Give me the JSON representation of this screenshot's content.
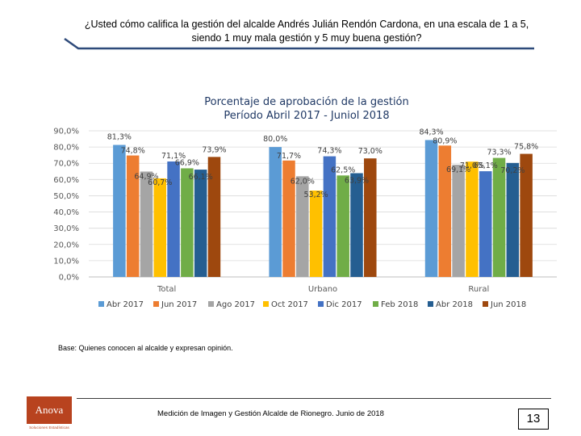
{
  "header": {
    "question": "¿Usted cómo califica la gestión del alcalde Andrés Julián Rendón Cardona, en una escala de 1 a 5, siendo 1 muy mala gestión y 5 muy buena gestión?"
  },
  "colors": {
    "accent_line": "#2e4a7a",
    "logo": "#b8431f"
  },
  "chart_data": {
    "type": "bar",
    "title": "Porcentaje de aprobación de la gestión",
    "subtitle": "Período Abril 2017 - Juniol 2018",
    "categories": [
      "Total",
      "Urbano",
      "Rural"
    ],
    "ylim": [
      0,
      90
    ],
    "yticks": [
      "0,0%",
      "10,0%",
      "20,0%",
      "30,0%",
      "40,0%",
      "50,0%",
      "60,0%",
      "70,0%",
      "80,0%",
      "90,0%"
    ],
    "series": [
      {
        "name": "Abr 2017",
        "color": "#5b9bd5",
        "values": [
          81.3,
          80.0,
          84.3
        ],
        "labels": [
          "81,3%",
          "80,0%",
          "84,3%"
        ]
      },
      {
        "name": "Jun 2017",
        "color": "#ed7d31",
        "values": [
          74.8,
          71.7,
          80.9
        ],
        "labels": [
          "74,8%",
          "71,7%",
          "80,9%"
        ]
      },
      {
        "name": "Ago 2017",
        "color": "#a5a5a5",
        "values": [
          64.9,
          62.0,
          69.1
        ],
        "labels": [
          "64,9%",
          "62,0%",
          "69,1%"
        ]
      },
      {
        "name": "Oct 2017",
        "color": "#ffc000",
        "values": [
          60.7,
          53.2,
          71.0
        ],
        "labels": [
          "60,7%",
          "53,2%",
          "71,0%"
        ]
      },
      {
        "name": "Dic 2017",
        "color": "#4472c4",
        "values": [
          71.1,
          74.3,
          65.1
        ],
        "labels": [
          "71,1%",
          "74,3%",
          "65,1%"
        ]
      },
      {
        "name": "Feb 2018",
        "color": "#70ad47",
        "values": [
          66.9,
          62.5,
          73.3
        ],
        "labels": [
          "66,9%",
          "62,5%",
          "73,3%"
        ]
      },
      {
        "name": "Abr 2018",
        "color": "#255e91",
        "values": [
          66.1,
          63.9,
          70.2
        ],
        "labels": [
          "66,1%",
          "63,9%",
          "70,2%"
        ]
      },
      {
        "name": "Jun 2018",
        "color": "#9e480e",
        "values": [
          73.9,
          73.0,
          75.8
        ],
        "labels": [
          "73,9%",
          "73,0%",
          "75,8%"
        ]
      }
    ],
    "legend_position": "bottom"
  },
  "footer": {
    "base_note": "Base: Quienes conocen al alcalde y expresan opinión.",
    "source": "Medición de Imagen y Gestión Alcalde de Rionegro. Junio de 2018",
    "page_number": "13",
    "logo_name": "Anova",
    "logo_tagline": "Soluciones Estadísticas"
  }
}
